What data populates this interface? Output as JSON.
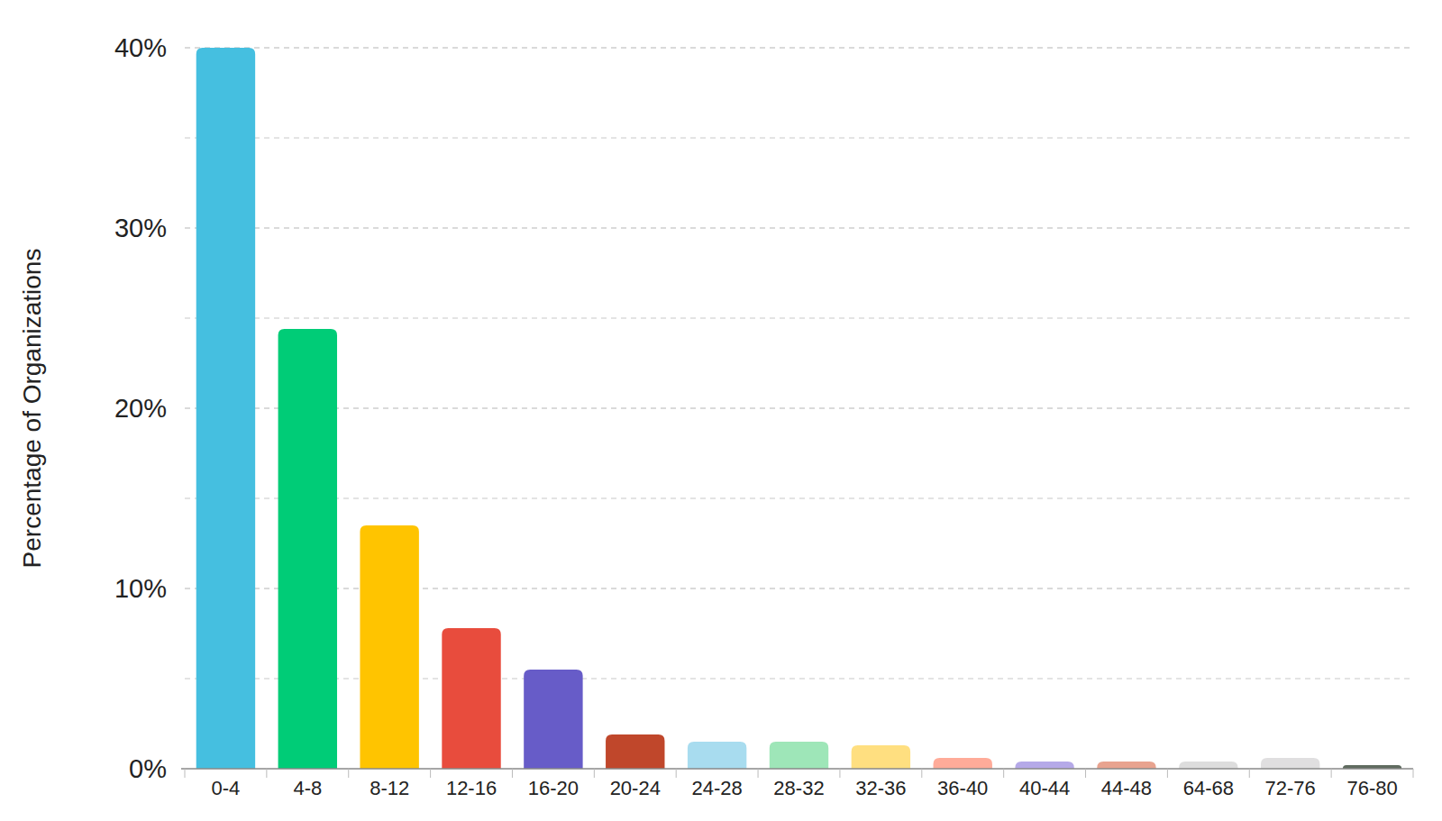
{
  "chart_data": {
    "type": "bar",
    "y_label": "Percentage of Organizations",
    "categories": [
      "0-4",
      "4-8",
      "8-12",
      "12-16",
      "16-20",
      "20-24",
      "24-28",
      "28-32",
      "32-36",
      "36-40",
      "40-44",
      "44-48",
      "64-68",
      "72-76",
      "76-80"
    ],
    "values": [
      40,
      24.4,
      13.5,
      7.8,
      5.5,
      1.9,
      1.5,
      1.5,
      1.3,
      0.6,
      0.4,
      0.4,
      0.4,
      0.6,
      0.2
    ],
    "colors": [
      "#45bfe0",
      "#00cc77",
      "#ffc400",
      "#e84c3d",
      "#675cc8",
      "#c0472b",
      "#a8dcef",
      "#9ee6b8",
      "#ffdf80",
      "#ffab99",
      "#b5a9e8",
      "#e8a38f",
      "#dddddd",
      "#e0dfe0",
      "#5f6b5f"
    ],
    "ylim": [
      0,
      40
    ],
    "yticks": [
      {
        "value": 0,
        "label": "0%"
      },
      {
        "value": 10,
        "label": "10%"
      },
      {
        "value": 20,
        "label": "20%"
      },
      {
        "value": 30,
        "label": "30%"
      },
      {
        "value": 40,
        "label": "40%"
      }
    ],
    "grid": true
  }
}
